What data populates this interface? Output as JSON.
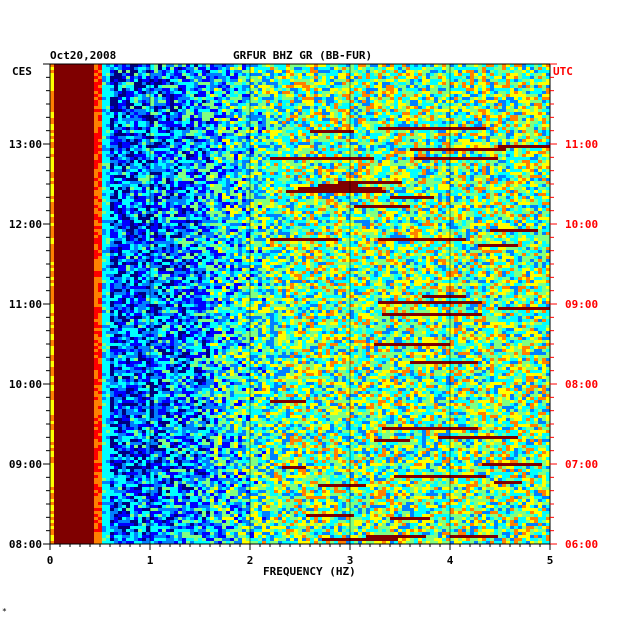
{
  "chart_data": {
    "type": "heatmap",
    "title": "GRFUR BHZ GR (BB-FUR)",
    "date": "Oct20,2008",
    "xlabel": "FREQUENCY (HZ)",
    "xlim": [
      0,
      5
    ],
    "x_ticks": [
      "0",
      "1",
      "2",
      "3",
      "4",
      "5"
    ],
    "left_axis_label": "CES",
    "right_axis_label": "UTC",
    "left_ticks": [
      "08:00",
      "09:00",
      "10:00",
      "11:00",
      "12:00",
      "13:00"
    ],
    "right_ticks": [
      "06:00",
      "07:00",
      "08:00",
      "09:00",
      "10:00",
      "11:00"
    ],
    "time_range_hours": [
      8.0,
      14.0
    ],
    "colors": {
      "utc_text": "#ff0000",
      "text": "#000000",
      "scale": [
        "#00007f",
        "#0000ff",
        "#0080ff",
        "#00ffff",
        "#80ff80",
        "#ffff00",
        "#ff8000",
        "#ff0000",
        "#7f0000"
      ]
    },
    "features": [
      {
        "band_hz": [
          0.05,
          0.45
        ],
        "level": "very high (dark red)"
      },
      {
        "band_hz": [
          0.45,
          0.55
        ],
        "level": "high (orange/yellow)"
      },
      {
        "band_hz": [
          0.55,
          1.6
        ],
        "level": "low (blue)"
      },
      {
        "band_hz": [
          1.6,
          5.0
        ],
        "level": "mixed, increasing with frequency"
      }
    ]
  }
}
